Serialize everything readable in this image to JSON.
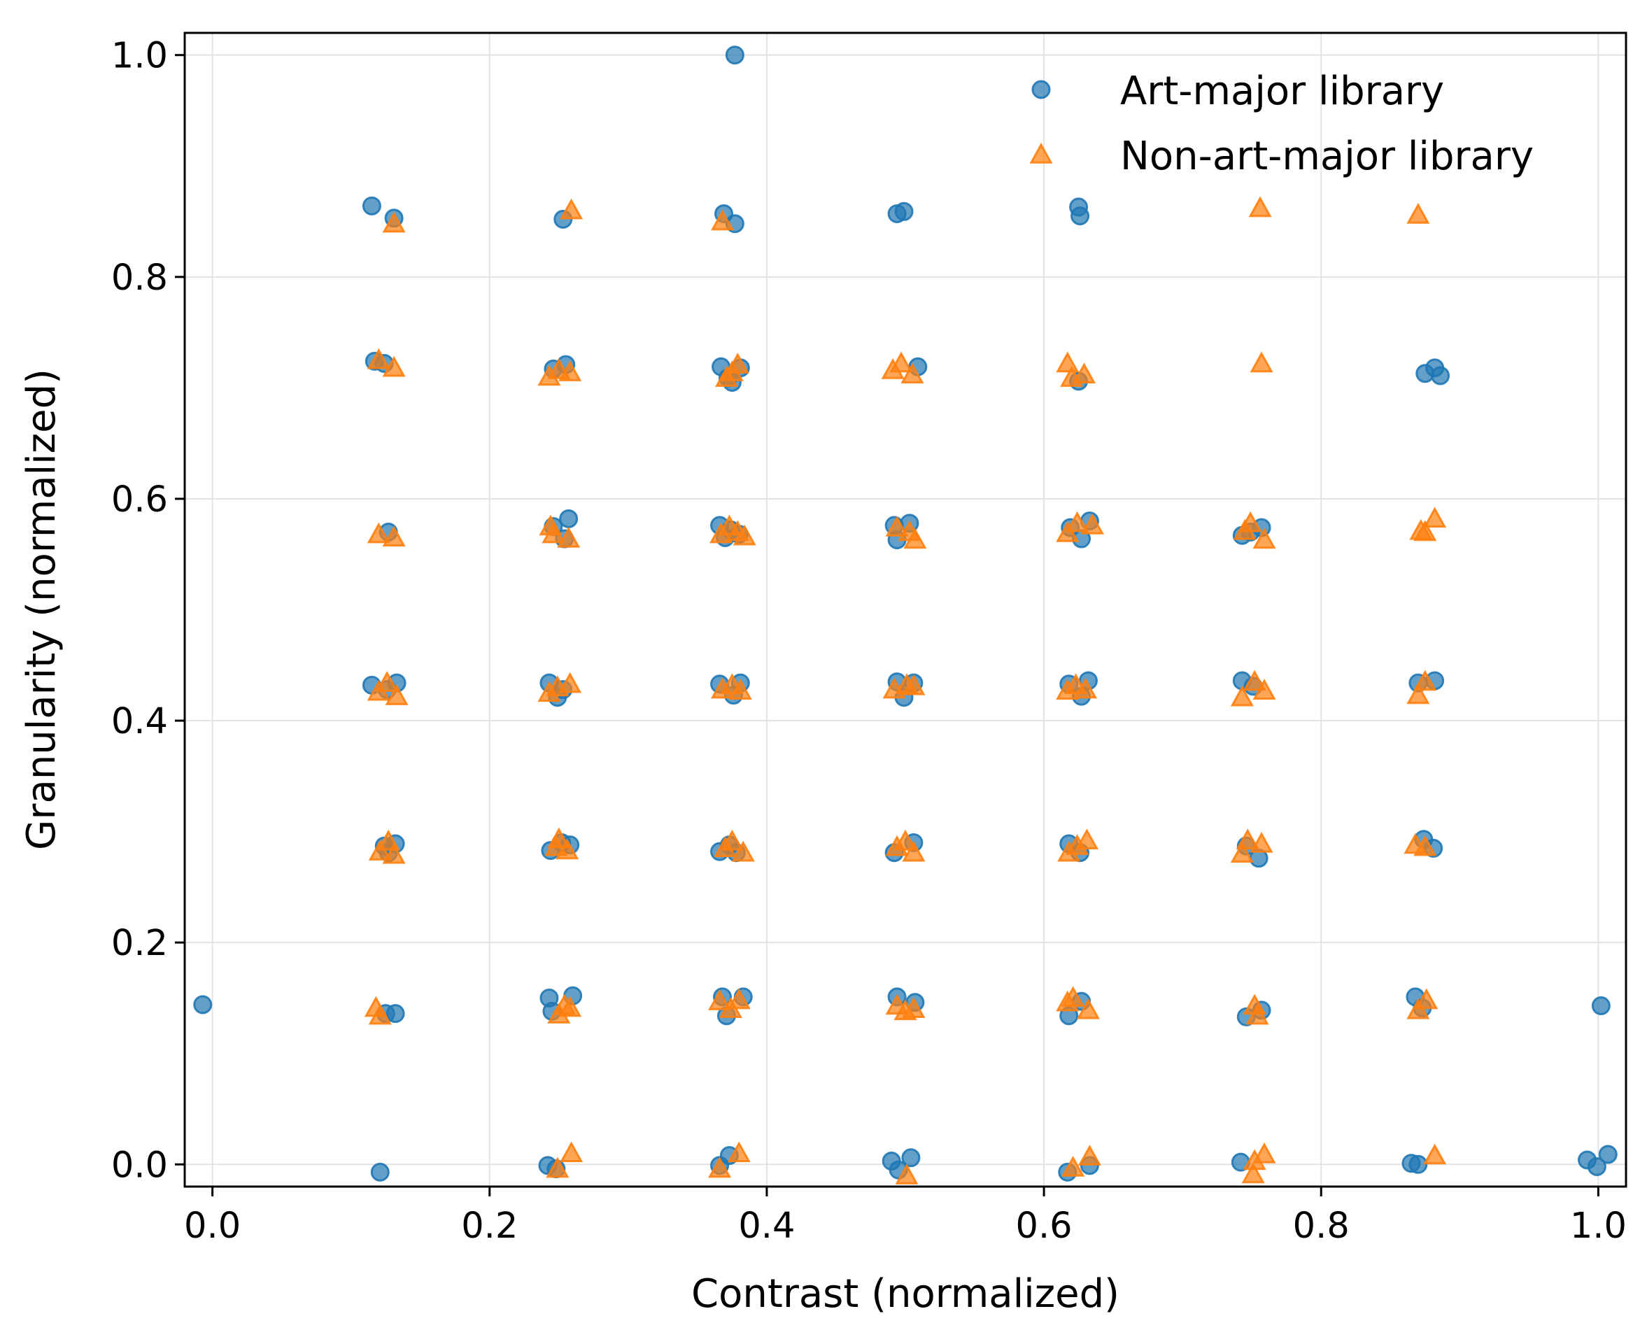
{
  "chart_data": {
    "type": "scatter",
    "title": "",
    "xlabel": "Contrast (normalized)",
    "ylabel": "Granularity (normalized)",
    "xlim": [
      -0.02,
      1.02
    ],
    "ylim": [
      -0.02,
      1.02
    ],
    "xticks": [
      "0.0",
      "0.2",
      "0.4",
      "0.6",
      "0.8",
      "1.0"
    ],
    "yticks": [
      "0.0",
      "0.2",
      "0.4",
      "0.6",
      "0.8",
      "1.0"
    ],
    "grid": true,
    "legend_position": "top-right",
    "series": [
      {
        "name": "Art-major library",
        "marker": "circle",
        "color": "#1f77b4",
        "points": [
          [
            0.377,
            1.0
          ],
          [
            0.115,
            0.864
          ],
          [
            0.131,
            0.853
          ],
          [
            0.253,
            0.852
          ],
          [
            0.369,
            0.857
          ],
          [
            0.377,
            0.848
          ],
          [
            0.494,
            0.857
          ],
          [
            0.499,
            0.859
          ],
          [
            0.625,
            0.863
          ],
          [
            0.626,
            0.855
          ],
          [
            0.117,
            0.724
          ],
          [
            0.124,
            0.722
          ],
          [
            0.246,
            0.717
          ],
          [
            0.255,
            0.721
          ],
          [
            0.367,
            0.719
          ],
          [
            0.372,
            0.709
          ],
          [
            0.381,
            0.718
          ],
          [
            0.375,
            0.705
          ],
          [
            0.509,
            0.719
          ],
          [
            0.625,
            0.706
          ],
          [
            0.875,
            0.713
          ],
          [
            0.882,
            0.718
          ],
          [
            0.886,
            0.711
          ],
          [
            0.127,
            0.57
          ],
          [
            0.246,
            0.575
          ],
          [
            0.257,
            0.582
          ],
          [
            0.254,
            0.564
          ],
          [
            0.366,
            0.576
          ],
          [
            0.374,
            0.572
          ],
          [
            0.38,
            0.568
          ],
          [
            0.37,
            0.565
          ],
          [
            0.492,
            0.576
          ],
          [
            0.503,
            0.578
          ],
          [
            0.494,
            0.563
          ],
          [
            0.619,
            0.574
          ],
          [
            0.633,
            0.58
          ],
          [
            0.627,
            0.564
          ],
          [
            0.743,
            0.567
          ],
          [
            0.757,
            0.574
          ],
          [
            0.749,
            0.57
          ],
          [
            0.115,
            0.432
          ],
          [
            0.126,
            0.428
          ],
          [
            0.133,
            0.434
          ],
          [
            0.243,
            0.434
          ],
          [
            0.253,
            0.428
          ],
          [
            0.249,
            0.421
          ],
          [
            0.366,
            0.433
          ],
          [
            0.381,
            0.434
          ],
          [
            0.376,
            0.423
          ],
          [
            0.494,
            0.435
          ],
          [
            0.506,
            0.434
          ],
          [
            0.499,
            0.421
          ],
          [
            0.618,
            0.433
          ],
          [
            0.632,
            0.436
          ],
          [
            0.627,
            0.422
          ],
          [
            0.743,
            0.436
          ],
          [
            0.751,
            0.431
          ],
          [
            0.87,
            0.434
          ],
          [
            0.882,
            0.436
          ],
          [
            0.124,
            0.287
          ],
          [
            0.132,
            0.289
          ],
          [
            0.127,
            0.281
          ],
          [
            0.244,
            0.283
          ],
          [
            0.252,
            0.29
          ],
          [
            0.258,
            0.288
          ],
          [
            0.366,
            0.282
          ],
          [
            0.373,
            0.288
          ],
          [
            0.378,
            0.281
          ],
          [
            0.492,
            0.281
          ],
          [
            0.506,
            0.29
          ],
          [
            0.618,
            0.289
          ],
          [
            0.626,
            0.281
          ],
          [
            0.746,
            0.287
          ],
          [
            0.755,
            0.276
          ],
          [
            0.874,
            0.293
          ],
          [
            0.881,
            0.285
          ],
          [
            -0.007,
            0.144
          ],
          [
            0.125,
            0.136
          ],
          [
            0.132,
            0.136
          ],
          [
            0.243,
            0.15
          ],
          [
            0.26,
            0.152
          ],
          [
            0.245,
            0.138
          ],
          [
            0.368,
            0.151
          ],
          [
            0.383,
            0.151
          ],
          [
            0.371,
            0.134
          ],
          [
            0.494,
            0.151
          ],
          [
            0.507,
            0.146
          ],
          [
            0.618,
            0.134
          ],
          [
            0.627,
            0.147
          ],
          [
            0.746,
            0.133
          ],
          [
            0.757,
            0.139
          ],
          [
            0.868,
            0.151
          ],
          [
            0.873,
            0.141
          ],
          [
            1.002,
            0.143
          ],
          [
            0.121,
            -0.007
          ],
          [
            0.242,
            -0.001
          ],
          [
            0.248,
            -0.004
          ],
          [
            0.366,
            -0.001
          ],
          [
            0.373,
            0.008
          ],
          [
            0.49,
            0.003
          ],
          [
            0.495,
            -0.005
          ],
          [
            0.504,
            0.006
          ],
          [
            0.617,
            -0.007
          ],
          [
            0.633,
            -0.001
          ],
          [
            0.742,
            0.002
          ],
          [
            0.865,
            0.001
          ],
          [
            0.87,
            0.0
          ],
          [
            0.992,
            0.004
          ],
          [
            1.007,
            0.009
          ],
          [
            0.999,
            -0.002
          ]
        ]
      },
      {
        "name": "Non-art-major library",
        "marker": "triangle",
        "color": "#ff7f0e",
        "points": [
          [
            0.131,
            0.848
          ],
          [
            0.259,
            0.86
          ],
          [
            0.368,
            0.85
          ],
          [
            0.756,
            0.862
          ],
          [
            0.87,
            0.856
          ],
          [
            0.12,
            0.725
          ],
          [
            0.131,
            0.718
          ],
          [
            0.243,
            0.71
          ],
          [
            0.25,
            0.716
          ],
          [
            0.258,
            0.714
          ],
          [
            0.375,
            0.714
          ],
          [
            0.379,
            0.721
          ],
          [
            0.371,
            0.709
          ],
          [
            0.491,
            0.716
          ],
          [
            0.497,
            0.722
          ],
          [
            0.505,
            0.712
          ],
          [
            0.617,
            0.722
          ],
          [
            0.62,
            0.709
          ],
          [
            0.629,
            0.712
          ],
          [
            0.757,
            0.722
          ],
          [
            0.12,
            0.568
          ],
          [
            0.131,
            0.565
          ],
          [
            0.244,
            0.575
          ],
          [
            0.246,
            0.568
          ],
          [
            0.257,
            0.564
          ],
          [
            0.367,
            0.568
          ],
          [
            0.373,
            0.575
          ],
          [
            0.379,
            0.57
          ],
          [
            0.384,
            0.566
          ],
          [
            0.494,
            0.574
          ],
          [
            0.503,
            0.57
          ],
          [
            0.507,
            0.563
          ],
          [
            0.617,
            0.569
          ],
          [
            0.624,
            0.578
          ],
          [
            0.635,
            0.576
          ],
          [
            0.745,
            0.571
          ],
          [
            0.749,
            0.578
          ],
          [
            0.759,
            0.563
          ],
          [
            0.872,
            0.571
          ],
          [
            0.875,
            0.57
          ],
          [
            0.882,
            0.582
          ],
          [
            0.12,
            0.426
          ],
          [
            0.126,
            0.434
          ],
          [
            0.133,
            0.422
          ],
          [
            0.243,
            0.425
          ],
          [
            0.249,
            0.43
          ],
          [
            0.258,
            0.433
          ],
          [
            0.368,
            0.428
          ],
          [
            0.375,
            0.432
          ],
          [
            0.381,
            0.427
          ],
          [
            0.492,
            0.428
          ],
          [
            0.501,
            0.432
          ],
          [
            0.506,
            0.431
          ],
          [
            0.617,
            0.427
          ],
          [
            0.623,
            0.432
          ],
          [
            0.63,
            0.428
          ],
          [
            0.743,
            0.421
          ],
          [
            0.752,
            0.435
          ],
          [
            0.759,
            0.427
          ],
          [
            0.87,
            0.423
          ],
          [
            0.875,
            0.435
          ],
          [
            0.121,
            0.282
          ],
          [
            0.127,
            0.291
          ],
          [
            0.131,
            0.279
          ],
          [
            0.248,
            0.286
          ],
          [
            0.25,
            0.293
          ],
          [
            0.256,
            0.283
          ],
          [
            0.37,
            0.285
          ],
          [
            0.375,
            0.291
          ],
          [
            0.383,
            0.281
          ],
          [
            0.494,
            0.286
          ],
          [
            0.5,
            0.291
          ],
          [
            0.506,
            0.281
          ],
          [
            0.618,
            0.281
          ],
          [
            0.624,
            0.287
          ],
          [
            0.631,
            0.292
          ],
          [
            0.743,
            0.28
          ],
          [
            0.747,
            0.292
          ],
          [
            0.757,
            0.289
          ],
          [
            0.868,
            0.288
          ],
          [
            0.875,
            0.286
          ],
          [
            0.118,
            0.141
          ],
          [
            0.121,
            0.134
          ],
          [
            0.25,
            0.135
          ],
          [
            0.254,
            0.143
          ],
          [
            0.258,
            0.141
          ],
          [
            0.366,
            0.147
          ],
          [
            0.374,
            0.14
          ],
          [
            0.38,
            0.148
          ],
          [
            0.494,
            0.143
          ],
          [
            0.5,
            0.138
          ],
          [
            0.506,
            0.14
          ],
          [
            0.617,
            0.146
          ],
          [
            0.621,
            0.15
          ],
          [
            0.632,
            0.139
          ],
          [
            0.752,
            0.143
          ],
          [
            0.754,
            0.134
          ],
          [
            0.87,
            0.139
          ],
          [
            0.876,
            0.148
          ],
          [
            0.249,
            -0.004
          ],
          [
            0.259,
            0.01
          ],
          [
            0.366,
            -0.004
          ],
          [
            0.38,
            0.01
          ],
          [
            0.501,
            -0.01
          ],
          [
            0.621,
            -0.003
          ],
          [
            0.633,
            0.007
          ],
          [
            0.751,
            -0.009
          ],
          [
            0.752,
            0.003
          ],
          [
            0.759,
            0.009
          ],
          [
            0.882,
            0.008
          ]
        ]
      }
    ]
  }
}
